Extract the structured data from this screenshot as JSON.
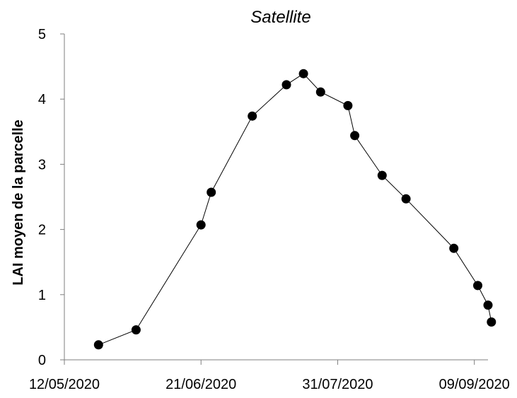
{
  "chart_data": {
    "type": "line",
    "title": "Satellite",
    "xlabel": "",
    "ylabel": "LAI moyen de la parcelle",
    "xlim": [
      "2020-05-12",
      "2020-09-13"
    ],
    "ylim": [
      0,
      5
    ],
    "x_ticks": [
      "2020-05-12",
      "2020-06-21",
      "2020-07-31",
      "2020-09-09"
    ],
    "x_tick_labels": [
      "12/05/2020",
      "21/06/2020",
      "31/07/2020",
      "09/09/2020"
    ],
    "y_ticks": [
      0,
      1,
      2,
      3,
      4,
      5
    ],
    "y_tick_labels": [
      "0",
      "1",
      "2",
      "3",
      "4",
      "5"
    ],
    "grid": false,
    "colors": {
      "line": "#000000",
      "marker": "#000000",
      "axis": "#7f7f7f"
    },
    "series": [
      {
        "x": [
          "2020-05-22",
          "2020-06-02",
          "2020-06-21",
          "2020-06-24",
          "2020-07-06",
          "2020-07-16",
          "2020-07-21",
          "2020-07-26",
          "2020-08-03",
          "2020-08-05",
          "2020-08-13",
          "2020-08-20",
          "2020-09-03",
          "2020-09-10",
          "2020-09-13",
          "2020-09-14"
        ],
        "y": [
          0.23,
          0.46,
          2.07,
          2.57,
          3.74,
          4.22,
          4.39,
          4.11,
          3.9,
          3.44,
          2.83,
          2.47,
          1.71,
          1.14,
          0.84,
          0.58
        ]
      }
    ]
  }
}
